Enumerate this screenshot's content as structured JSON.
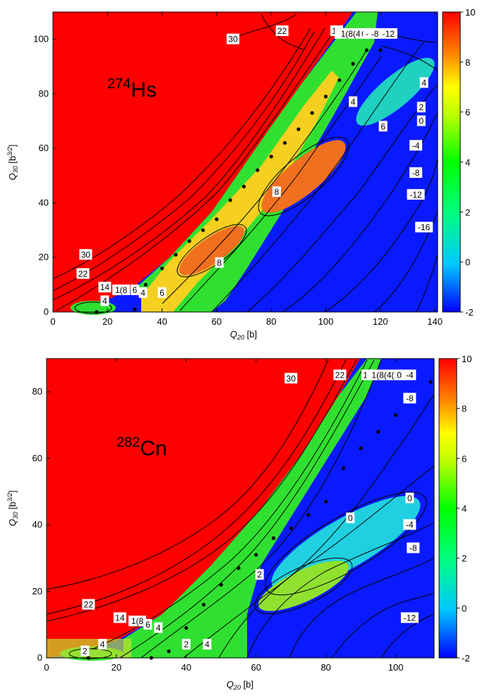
{
  "colorbar": {
    "ticks": [
      10,
      8,
      6,
      4,
      2,
      0,
      -2
    ],
    "range": [
      -2,
      10
    ]
  },
  "chart_data": [
    {
      "type": "heatmap",
      "panel": "top",
      "nucleus": {
        "mass": "274",
        "symbol": "Hs"
      },
      "xlabel": {
        "main": "Q",
        "sub": "20",
        "unit": " [b]"
      },
      "ylabel": {
        "main": "Q",
        "sub": "30",
        "unit_open": " [b",
        "unit_sup": "3/2",
        "unit_close": "]"
      },
      "xlim": [
        0,
        141
      ],
      "ylim": [
        0,
        110
      ],
      "x_ticks": [
        0,
        20,
        40,
        60,
        80,
        100,
        120,
        140
      ],
      "y_ticks": [
        0,
        20,
        40,
        60,
        80,
        100
      ],
      "path_points": [
        [
          16,
          0
        ],
        [
          30,
          1
        ],
        [
          34,
          10
        ],
        [
          40,
          16
        ],
        [
          45,
          21
        ],
        [
          50,
          26
        ],
        [
          55,
          30
        ],
        [
          60,
          34
        ],
        [
          65,
          41
        ],
        [
          70,
          46
        ],
        [
          75,
          52
        ],
        [
          80,
          57
        ],
        [
          85,
          62
        ],
        [
          90,
          67
        ],
        [
          95,
          73
        ],
        [
          100,
          79
        ],
        [
          105,
          85
        ],
        [
          110,
          91
        ],
        [
          115,
          96
        ],
        [
          120,
          96
        ]
      ],
      "contour_labels": [
        {
          "text": "30",
          "x": 66,
          "y": 100
        },
        {
          "text": "22",
          "x": 84,
          "y": 103
        },
        {
          "text": "14",
          "x": 104,
          "y": 103
        },
        {
          "text": "1(8(4(2(",
          "x": 111,
          "y": 102
        },
        {
          "text": "0",
          "x": 114,
          "y": 102
        },
        {
          "text": "-4",
          "x": 116,
          "y": 102
        },
        {
          "text": "-8",
          "x": 118,
          "y": 102
        },
        {
          "text": "-12",
          "x": 123,
          "y": 102
        },
        {
          "text": "4",
          "x": 136,
          "y": 84
        },
        {
          "text": "2",
          "x": 135,
          "y": 75
        },
        {
          "text": "0",
          "x": 135,
          "y": 70
        },
        {
          "text": "4",
          "x": 110,
          "y": 77
        },
        {
          "text": "6",
          "x": 121,
          "y": 68
        },
        {
          "text": "-4",
          "x": 133,
          "y": 61
        },
        {
          "text": "-8",
          "x": 133,
          "y": 51
        },
        {
          "text": "-12",
          "x": 133,
          "y": 43
        },
        {
          "text": "-16",
          "x": 136,
          "y": 31
        },
        {
          "text": "8",
          "x": 82,
          "y": 44
        },
        {
          "text": "8",
          "x": 61,
          "y": 18
        },
        {
          "text": "30",
          "x": 12,
          "y": 21
        },
        {
          "text": "22",
          "x": 11,
          "y": 14
        },
        {
          "text": "14",
          "x": 19,
          "y": 9
        },
        {
          "text": "1(8",
          "x": 25,
          "y": 8
        },
        {
          "text": "6",
          "x": 30,
          "y": 8
        },
        {
          "text": "4",
          "x": 19,
          "y": 4
        },
        {
          "text": "4",
          "x": 33,
          "y": 7
        },
        {
          "text": "6",
          "x": 40,
          "y": 7
        }
      ]
    },
    {
      "type": "heatmap",
      "panel": "bottom",
      "nucleus": {
        "mass": "282",
        "symbol": "Cn"
      },
      "xlabel": {
        "main": "Q",
        "sub": "20",
        "unit": " [b]"
      },
      "ylabel": {
        "main": "Q",
        "sub": "30",
        "unit_open": " [b",
        "unit_sup": "3/2",
        "unit_close": "]"
      },
      "xlim": [
        0,
        111
      ],
      "ylim": [
        0,
        90
      ],
      "x_ticks": [
        0,
        20,
        40,
        60,
        80,
        100
      ],
      "y_ticks": [
        0,
        20,
        40,
        60,
        80
      ],
      "path_points": [
        [
          12,
          0
        ],
        [
          30,
          0
        ],
        [
          35,
          2
        ],
        [
          40,
          9
        ],
        [
          45,
          16
        ],
        [
          50,
          22
        ],
        [
          55,
          27
        ],
        [
          60,
          31
        ],
        [
          65,
          36
        ],
        [
          70,
          39
        ],
        [
          75,
          43
        ],
        [
          80,
          47
        ],
        [
          85,
          57
        ],
        [
          90,
          63
        ],
        [
          95,
          68
        ],
        [
          100,
          73
        ],
        [
          105,
          79
        ],
        [
          110,
          83
        ]
      ],
      "contour_labels": [
        {
          "text": "30",
          "x": 70,
          "y": 84
        },
        {
          "text": "22",
          "x": 84,
          "y": 85
        },
        {
          "text": "14",
          "x": 92,
          "y": 85
        },
        {
          "text": "1(8(4(2",
          "x": 97,
          "y": 85
        },
        {
          "text": "0",
          "x": 101,
          "y": 85
        },
        {
          "text": "-4",
          "x": 104,
          "y": 85
        },
        {
          "text": "-8",
          "x": 104,
          "y": 78
        },
        {
          "text": "0",
          "x": 104,
          "y": 48
        },
        {
          "text": "0",
          "x": 87,
          "y": 42
        },
        {
          "text": "-4",
          "x": 104,
          "y": 40
        },
        {
          "text": "-8",
          "x": 105,
          "y": 33
        },
        {
          "text": "-12",
          "x": 104,
          "y": 12
        },
        {
          "text": "2",
          "x": 61,
          "y": 25
        },
        {
          "text": "22",
          "x": 12,
          "y": 16
        },
        {
          "text": "14",
          "x": 21,
          "y": 12
        },
        {
          "text": "1(8",
          "x": 26,
          "y": 11
        },
        {
          "text": "6",
          "x": 29,
          "y": 10
        },
        {
          "text": "4",
          "x": 32,
          "y": 9
        },
        {
          "text": "2",
          "x": 11,
          "y": 2
        },
        {
          "text": "4",
          "x": 16,
          "y": 4
        },
        {
          "text": "2",
          "x": 40,
          "y": 4
        },
        {
          "text": "4",
          "x": 46,
          "y": 4
        }
      ]
    }
  ]
}
